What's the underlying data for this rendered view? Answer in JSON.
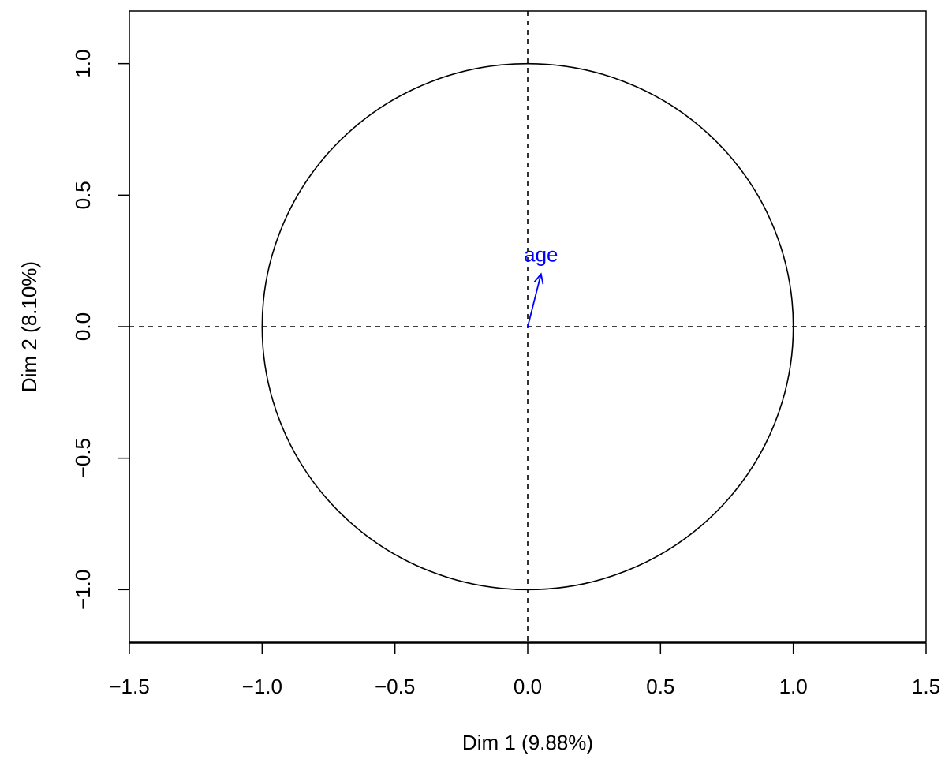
{
  "chart_data": {
    "type": "scatter",
    "title": "",
    "xlabel": "Dim 1 (9.88%)",
    "ylabel": "Dim 2 (8.10%)",
    "xlim": [
      -1.5,
      1.5
    ],
    "ylim": [
      -1.2,
      1.2
    ],
    "x_ticks": [
      -1.5,
      -1.0,
      -0.5,
      0.0,
      0.5,
      1.0,
      1.5
    ],
    "x_tick_labels": [
      "−1.5",
      "−1.0",
      "−0.5",
      "0.0",
      "0.5",
      "1.0",
      "1.5"
    ],
    "y_ticks": [
      -1.0,
      -0.5,
      0.0,
      0.5,
      1.0
    ],
    "y_tick_labels": [
      "−1.0",
      "−0.5",
      "0.0",
      "0.5",
      "1.0"
    ],
    "unit_circle_radius": 1.0,
    "reference_lines": {
      "x": 0.0,
      "y": 0.0,
      "style": "dashed"
    },
    "grid": false,
    "vectors": [
      {
        "label": "age",
        "x": 0.05,
        "y": 0.2,
        "color": "#0000ff"
      }
    ]
  }
}
